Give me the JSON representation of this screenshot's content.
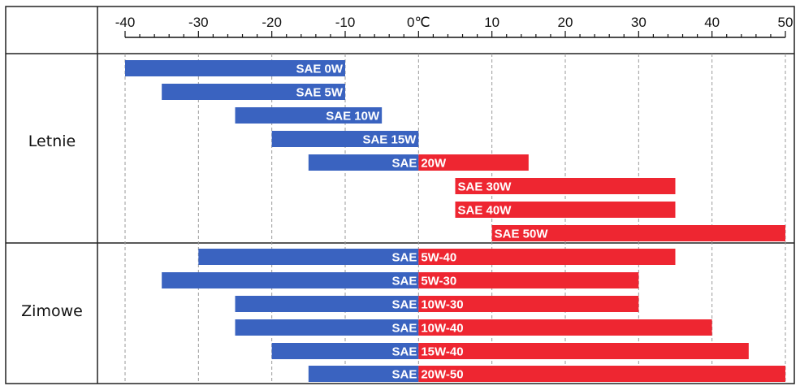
{
  "chart_data": {
    "type": "bar",
    "orientation": "horizontal-range",
    "title": "",
    "xlabel": "",
    "ylabel": "",
    "x_unit": "℃",
    "xlim": [
      -40,
      50
    ],
    "x_ticks": [
      "-40",
      "-30",
      "-20",
      "-10",
      "0",
      "10",
      "20",
      "30",
      "40",
      "50"
    ],
    "grid": "vertical dashed",
    "colors": {
      "cold": "#3a63c0",
      "hot": "#ee2631"
    },
    "groups": [
      {
        "label": "Letnie",
        "bars": [
          {
            "prefix": "SAE",
            "suffix": "0W",
            "min": -40,
            "max": -10
          },
          {
            "prefix": "SAE",
            "suffix": "5W",
            "min": -35,
            "max": -10
          },
          {
            "prefix": "SAE",
            "suffix": "10W",
            "min": -25,
            "max": -5
          },
          {
            "prefix": "SAE",
            "suffix": "15W",
            "min": -20,
            "max": 0
          },
          {
            "prefix": "SAE",
            "suffix": "20W",
            "min": -15,
            "max": 15
          },
          {
            "prefix": "SAE",
            "suffix": "30W",
            "min": 5,
            "max": 35
          },
          {
            "prefix": "SAE",
            "suffix": "40W",
            "min": 5,
            "max": 35
          },
          {
            "prefix": "SAE",
            "suffix": "50W",
            "min": 10,
            "max": 50
          }
        ]
      },
      {
        "label": "Zimowe",
        "bars": [
          {
            "prefix": "SAE",
            "suffix": "5W-40",
            "min": -30,
            "max": 35
          },
          {
            "prefix": "SAE",
            "suffix": "5W-30",
            "min": -35,
            "max": 30
          },
          {
            "prefix": "SAE",
            "suffix": "10W-30",
            "min": -25,
            "max": 30
          },
          {
            "prefix": "SAE",
            "suffix": "10W-40",
            "min": -25,
            "max": 40
          },
          {
            "prefix": "SAE",
            "suffix": "15W-40",
            "min": -20,
            "max": 45
          },
          {
            "prefix": "SAE",
            "suffix": "20W-50",
            "min": -15,
            "max": 50
          }
        ]
      }
    ]
  }
}
